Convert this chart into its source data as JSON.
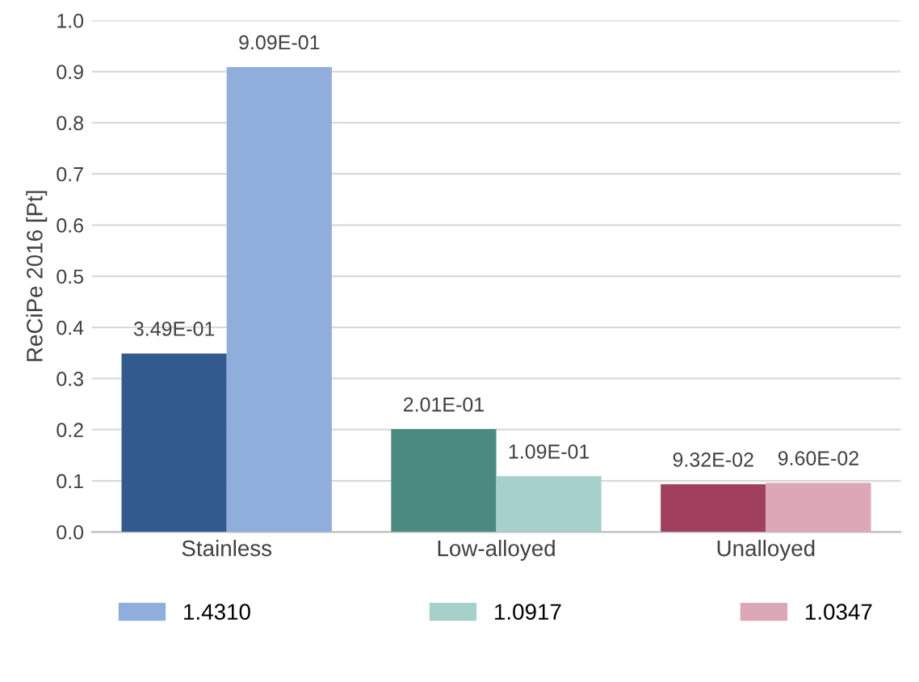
{
  "chart_data": {
    "type": "bar",
    "ylabel": "ReCiPe 2016 [Pt]",
    "categories": [
      "Stainless",
      "Low-alloyed",
      "Unalloyed"
    ],
    "series": [
      {
        "color": "#335a8e",
        "values": [
          0.349,
          null,
          null
        ],
        "value_labels": [
          "3.49E-01",
          null,
          null
        ]
      },
      {
        "name": "1.4310",
        "color": "#8faedb",
        "values": [
          0.909,
          null,
          null
        ],
        "value_labels": [
          "9.09E-01",
          null,
          null
        ]
      },
      {
        "color": "#4a8a80",
        "values": [
          null,
          0.201,
          null
        ],
        "value_labels": [
          null,
          "2.01E-01",
          null
        ]
      },
      {
        "name": "1.0917",
        "color": "#a6d1cb",
        "values": [
          null,
          0.109,
          null
        ],
        "value_labels": [
          null,
          "1.09E-01",
          null
        ]
      },
      {
        "color": "#a0405e",
        "values": [
          null,
          null,
          0.0932
        ],
        "value_labels": [
          null,
          null,
          "9.32E-02"
        ]
      },
      {
        "name": "1.0347",
        "color": "#dca7b6",
        "values": [
          null,
          null,
          0.096
        ],
        "value_labels": [
          null,
          null,
          "9.60E-02"
        ]
      }
    ],
    "ylim": [
      0,
      1
    ],
    "yticks": [
      {
        "value": 0,
        "label": "0.0"
      },
      {
        "value": 0.1,
        "label": "0.1"
      },
      {
        "value": 0.2,
        "label": "0.2"
      },
      {
        "value": 0.3,
        "label": "0.3"
      },
      {
        "value": 0.4,
        "label": "0.4"
      },
      {
        "value": 0.5,
        "label": "0.5"
      },
      {
        "value": 0.6,
        "label": "0.6"
      },
      {
        "value": 0.7,
        "label": "0.7"
      },
      {
        "value": 0.8,
        "label": "0.8"
      },
      {
        "value": 0.9,
        "label": "0.9"
      },
      {
        "value": 1,
        "label": "1.0"
      }
    ],
    "grid": "y",
    "legend": "bottom"
  }
}
